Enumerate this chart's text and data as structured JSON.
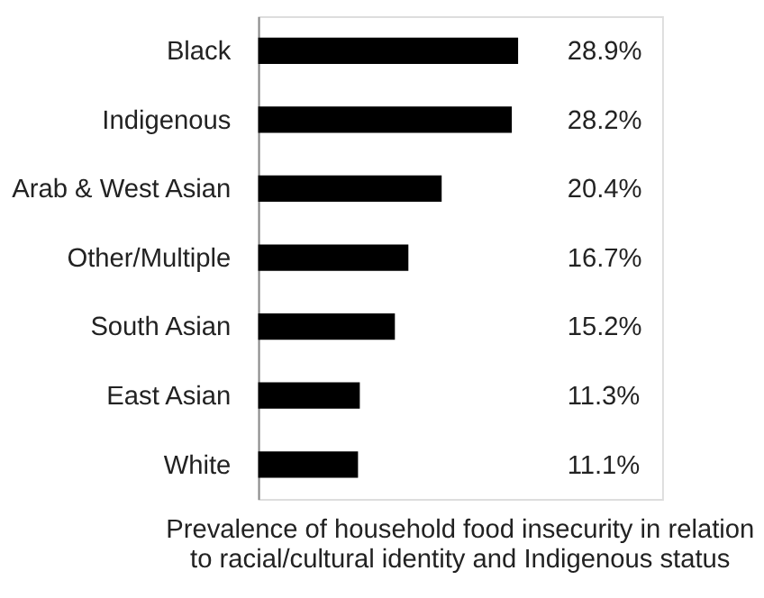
{
  "chart_data": {
    "type": "bar",
    "orientation": "horizontal",
    "title": "Prevalence of household food insecurity in relation to racial/cultural identity and Indigenous status",
    "categories": [
      "Black",
      "Indigenous",
      "Arab & West Asian",
      "Other/Multiple",
      "South Asian",
      "East Asian",
      "White"
    ],
    "values": [
      28.9,
      28.2,
      20.4,
      16.7,
      15.2,
      11.3,
      11.1
    ],
    "value_labels": [
      "28.9%",
      "28.2%",
      "20.4%",
      "16.7%",
      "15.2%",
      "11.3%",
      "11.1%"
    ],
    "color": "#000000"
  }
}
